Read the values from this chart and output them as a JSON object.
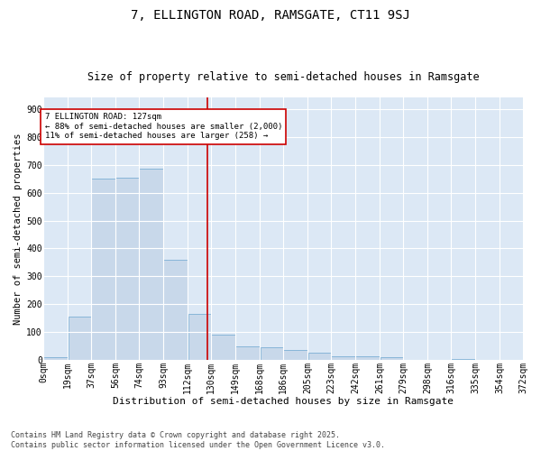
{
  "title1": "7, ELLINGTON ROAD, RAMSGATE, CT11 9SJ",
  "title2": "Size of property relative to semi-detached houses in Ramsgate",
  "xlabel": "Distribution of semi-detached houses by size in Ramsgate",
  "ylabel": "Number of semi-detached properties",
  "bar_color": "#c8d8ea",
  "bar_edge_color": "#7bafd4",
  "background_color": "#dce8f5",
  "grid_color": "#ffffff",
  "fig_bg_color": "#ffffff",
  "marker_line_color": "#cc0000",
  "marker_value": 127,
  "annotation_title": "7 ELLINGTON ROAD: 127sqm",
  "annotation_line1": "← 88% of semi-detached houses are smaller (2,000)",
  "annotation_line2": "11% of semi-detached houses are larger (258) →",
  "annotation_box_color": "#ffffff",
  "annotation_box_edge": "#cc0000",
  "bin_edges": [
    0,
    19,
    37,
    56,
    74,
    93,
    112,
    130,
    149,
    168,
    186,
    205,
    223,
    242,
    261,
    279,
    298,
    316,
    335,
    354,
    372
  ],
  "bin_counts": [
    10,
    155,
    650,
    655,
    685,
    360,
    165,
    90,
    50,
    45,
    35,
    28,
    15,
    15,
    10,
    0,
    0,
    5,
    2,
    0
  ],
  "yticks": [
    0,
    100,
    200,
    300,
    400,
    500,
    600,
    700,
    800,
    900
  ],
  "ylim": [
    0,
    940
  ],
  "footnote": "Contains HM Land Registry data © Crown copyright and database right 2025.\nContains public sector information licensed under the Open Government Licence v3.0.",
  "title1_fontsize": 10,
  "title2_fontsize": 8.5,
  "xlabel_fontsize": 8,
  "ylabel_fontsize": 7.5,
  "tick_fontsize": 7,
  "annot_fontsize": 6.5,
  "footnote_fontsize": 6
}
